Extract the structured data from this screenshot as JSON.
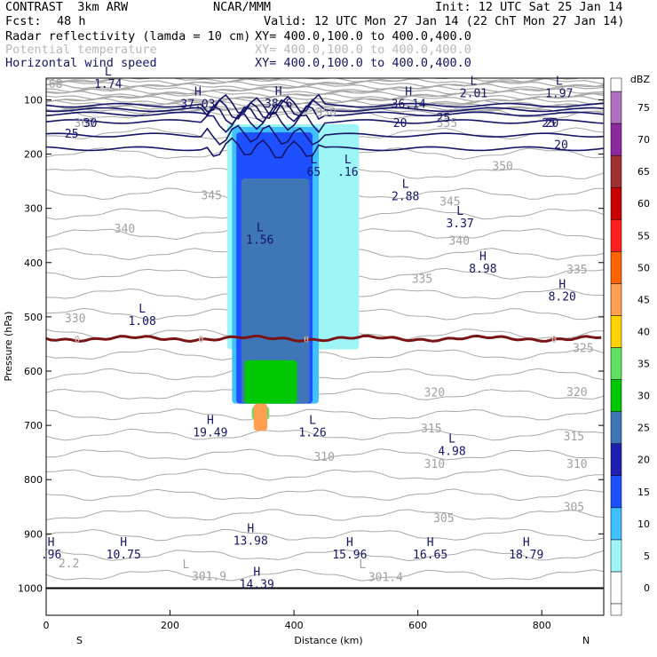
{
  "header": {
    "model": "CONTRAST  3km ARW",
    "org": "NCAR/MMM",
    "init": "Init: 12 UTC Sat 25 Jan 14",
    "fcst_label": "Fcst:",
    "fcst_value": "48 h",
    "valid": "Valid: 12 UTC Mon 27 Jan 14 (22 ChT Mon 27 Jan 14)",
    "fields": [
      {
        "name": "Radar reflectivity (lamda = 10 cm)",
        "xy": "XY= 400.0,100.0 to 400.0,400.0"
      },
      {
        "name": "Potential temperature",
        "xy": "XY= 400.0,100.0 to 400.0,400.0"
      },
      {
        "name": "Horizontal wind speed",
        "xy": "XY= 400.0,100.0 to 400.0,400.0"
      }
    ]
  },
  "colors": {
    "wind_contour": "#141469",
    "theta_contour": "#a8a8a8",
    "freezing_line": "#7a1414",
    "surface": "#000000"
  },
  "chart_data": {
    "type": "heatmap",
    "title": "",
    "xlabel": "Distance (km)",
    "ylabel": "Pressure (hPa)",
    "xlim": [
      0,
      900
    ],
    "ylim": [
      1050,
      60
    ],
    "x_ticks": [
      0,
      200,
      400,
      600,
      800
    ],
    "y_ticks": [
      100,
      200,
      300,
      400,
      500,
      600,
      700,
      800,
      900,
      1000
    ],
    "x_end_labels": {
      "left": "S",
      "right": "N"
    },
    "colorbar": {
      "unit": "dBZ",
      "levels": [
        0,
        5,
        10,
        15,
        20,
        25,
        30,
        35,
        40,
        45,
        50,
        55,
        60,
        65,
        70,
        75
      ],
      "colors": [
        "#ffffff",
        "#9ef5f5",
        "#40c0ff",
        "#1e50ff",
        "#2020b0",
        "#3f76b8",
        "#00c800",
        "#60e060",
        "#ffd200",
        "#ffa050",
        "#ff6400",
        "#ff1e1e",
        "#c80000",
        "#a03030",
        "#8c28a0",
        "#b070c0"
      ]
    },
    "reflectivity_regions": [
      {
        "dbz": 5,
        "x0": 292,
        "x1": 505,
        "p_top": 145,
        "p_bot": 560
      },
      {
        "dbz": 10,
        "x0": 300,
        "x1": 440,
        "p_top": 150,
        "p_bot": 660
      },
      {
        "dbz": 15,
        "x0": 307,
        "x1": 430,
        "p_top": 160,
        "p_bot": 660
      },
      {
        "dbz": 25,
        "x0": 315,
        "x1": 425,
        "p_top": 245,
        "p_bot": 660
      },
      {
        "dbz": 30,
        "x0": 320,
        "x1": 405,
        "p_top": 580,
        "p_bot": 660
      },
      {
        "dbz": 35,
        "x0": 332,
        "x1": 360,
        "p_top": 690,
        "p_bot": 665
      },
      {
        "dbz": 45,
        "x0": 335,
        "x1": 357,
        "p_top": 710,
        "p_bot": 660
      }
    ],
    "wind_contours": {
      "labels": [
        "30",
        "25",
        "20",
        "25",
        "20",
        "25",
        "20"
      ],
      "extrema": [
        {
          "type": "L",
          "value": "1.74",
          "x": 100,
          "p": 78
        },
        {
          "type": "H",
          "value": "37.03",
          "x": 245,
          "p": 115
        },
        {
          "type": "H",
          "value": "38.6",
          "x": 375,
          "p": 114
        },
        {
          "type": "H",
          "value": "36.14",
          "x": 585,
          "p": 115
        },
        {
          "type": "L",
          "value": "2.01",
          "x": 690,
          "p": 95
        },
        {
          "type": "L",
          "value": "1.97",
          "x": 828,
          "p": 95
        },
        {
          "type": "L",
          "value": "65",
          "x": 432,
          "p": 240
        },
        {
          "type": "L",
          "value": ".16",
          "x": 487,
          "p": 240
        },
        {
          "type": "L",
          "value": "2.88",
          "x": 580,
          "p": 285
        },
        {
          "type": "L",
          "value": "3.37",
          "x": 668,
          "p": 335
        },
        {
          "type": "L",
          "value": "1.56",
          "x": 345,
          "p": 365
        },
        {
          "type": "H",
          "value": "8.98",
          "x": 705,
          "p": 418
        },
        {
          "type": "H",
          "value": "8.20",
          "x": 833,
          "p": 470
        },
        {
          "type": "L",
          "value": "1.08",
          "x": 155,
          "p": 515
        },
        {
          "type": "H",
          "value": "19.49",
          "x": 265,
          "p": 720
        },
        {
          "type": "L",
          "value": "1.26",
          "x": 430,
          "p": 720
        },
        {
          "type": "L",
          "value": "4.98",
          "x": 655,
          "p": 755
        },
        {
          "type": "H",
          "value": "13.98",
          "x": 330,
          "p": 920
        },
        {
          "type": "H",
          "value": ".96",
          "x": 8,
          "p": 945
        },
        {
          "type": "H",
          "value": "10.75",
          "x": 125,
          "p": 945
        },
        {
          "type": "H",
          "value": "15.96",
          "x": 490,
          "p": 945
        },
        {
          "type": "H",
          "value": "16.65",
          "x": 620,
          "p": 945
        },
        {
          "type": "H",
          "value": "18.79",
          "x": 775,
          "p": 945
        },
        {
          "type": "H",
          "value": "14.39",
          "x": 340,
          "p": 1000
        }
      ]
    },
    "theta_contours": {
      "labels": [
        {
          "text": "360",
          "x": 45,
          "p": 150
        },
        {
          "text": "355",
          "x": 630,
          "p": 150
        },
        {
          "text": "350",
          "x": 720,
          "p": 229
        },
        {
          "text": "345",
          "x": 250,
          "p": 283
        },
        {
          "text": "345",
          "x": 635,
          "p": 295
        },
        {
          "text": "340",
          "x": 110,
          "p": 345
        },
        {
          "text": "340",
          "x": 650,
          "p": 367
        },
        {
          "text": "335",
          "x": 590,
          "p": 437
        },
        {
          "text": "335",
          "x": 840,
          "p": 420
        },
        {
          "text": "330",
          "x": 30,
          "p": 510
        },
        {
          "text": "325",
          "x": 850,
          "p": 565
        },
        {
          "text": "320",
          "x": 610,
          "p": 647
        },
        {
          "text": "320",
          "x": 840,
          "p": 646
        },
        {
          "text": "315",
          "x": 605,
          "p": 713
        },
        {
          "text": "315",
          "x": 835,
          "p": 728
        },
        {
          "text": "310",
          "x": 432,
          "p": 765
        },
        {
          "text": "310",
          "x": 610,
          "p": 778
        },
        {
          "text": "310",
          "x": 840,
          "p": 778
        },
        {
          "text": "305",
          "x": 625,
          "p": 878
        },
        {
          "text": "305",
          "x": 835,
          "p": 858
        },
        {
          "text": "2.2",
          "x": 20,
          "p": 962
        },
        {
          "text": "301.9",
          "x": 235,
          "p": 985
        },
        {
          "text": "301.4",
          "x": 520,
          "p": 987
        }
      ],
      "extrema_letters": [
        {
          "text": "L",
          "x": 220,
          "p": 963
        },
        {
          "text": "L",
          "x": 505,
          "p": 963
        }
      ],
      "extra_labels": [
        {
          "text": "68",
          "x": 4,
          "p": 78
        },
        {
          "text": "350",
          "x": 435,
          "p": 130
        }
      ]
    },
    "freezing_level": {
      "label": "0",
      "p": 540
    }
  }
}
